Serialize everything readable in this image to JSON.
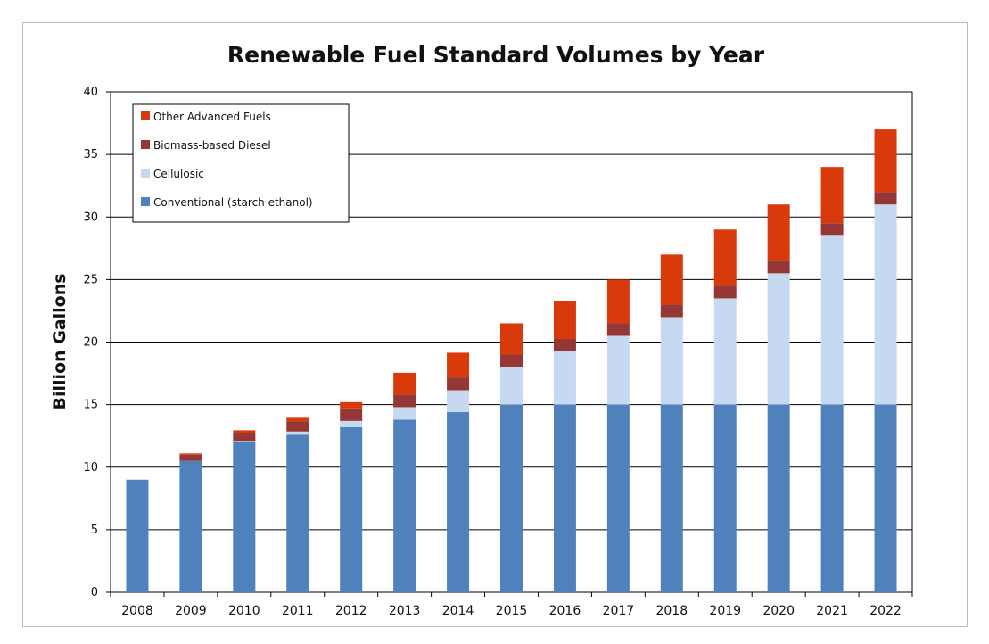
{
  "chart_data": {
    "type": "bar",
    "stacked": true,
    "title": "Renewable Fuel Standard Volumes by Year",
    "xlabel": "",
    "ylabel": "Billion Gallons",
    "ylim": [
      0,
      40
    ],
    "yticks": [
      0,
      5,
      10,
      15,
      20,
      25,
      30,
      35,
      40
    ],
    "grid": "horizontal",
    "legend_position": "top-left",
    "categories": [
      "2008",
      "2009",
      "2010",
      "2011",
      "2012",
      "2013",
      "2014",
      "2015",
      "2016",
      "2017",
      "2018",
      "2019",
      "2020",
      "2021",
      "2022"
    ],
    "series": [
      {
        "name": "Conventional (starch ethanol)",
        "color": "#4f81bd",
        "values": [
          9.0,
          10.5,
          12.0,
          12.6,
          13.2,
          13.8,
          14.4,
          15.0,
          15.0,
          15.0,
          15.0,
          15.0,
          15.0,
          15.0,
          15.0
        ]
      },
      {
        "name": "Cellulosic",
        "color": "#c6d9f1",
        "values": [
          0.0,
          0.0,
          0.1,
          0.25,
          0.5,
          1.0,
          1.75,
          3.0,
          4.25,
          5.5,
          7.0,
          8.5,
          10.5,
          13.5,
          16.0
        ]
      },
      {
        "name": "Biomass-based Diesel",
        "color": "#953735",
        "values": [
          0.0,
          0.5,
          0.65,
          0.8,
          1.0,
          1.0,
          1.0,
          1.0,
          1.0,
          1.0,
          1.0,
          1.0,
          1.0,
          1.0,
          1.0
        ]
      },
      {
        "name": "Other Advanced Fuels",
        "color": "#d93a0b",
        "values": [
          0.0,
          0.1,
          0.2,
          0.3,
          0.5,
          1.75,
          2.0,
          2.5,
          3.0,
          3.5,
          4.0,
          4.5,
          4.5,
          4.5,
          5.0
        ]
      }
    ]
  }
}
